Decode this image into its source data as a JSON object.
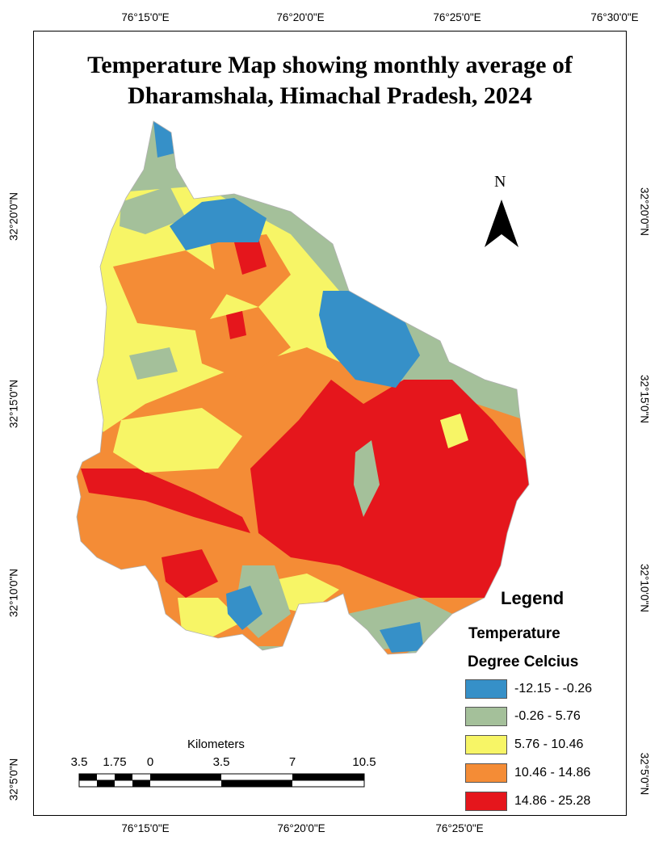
{
  "title": {
    "line1": "Temperature Map showing monthly average of",
    "line2": "Dharamshala, Himachal Pradesh, 2024"
  },
  "graticule": {
    "longitudes_top": [
      "76°15'0\"E",
      "76°20'0\"E",
      "76°25'0\"E",
      "76°30'0\"E"
    ],
    "longitudes_bottom": [
      "76°15'0\"E",
      "76°20'0\"E",
      "76°25'0\"E"
    ],
    "latitudes": [
      "32°20'0\"N",
      "32°15'0\"N",
      "32°10'0\"N",
      "32°5'0\"N"
    ]
  },
  "north_arrow": {
    "label": "N",
    "icon": "north-arrow-icon"
  },
  "legend": {
    "title": "Legend",
    "subtitle1": "Temperature",
    "subtitle2": "Degree Celcius",
    "classes": [
      {
        "label": "-12.15 - -0.26",
        "color": "#3690c8"
      },
      {
        "label": "-0.26 - 5.76",
        "color": "#a4c09a"
      },
      {
        "label": "5.76 - 10.46",
        "color": "#f7f566"
      },
      {
        "label": "10.46 - 14.86",
        "color": "#f48c36"
      },
      {
        "label": "14.86 - 25.28",
        "color": "#e5161c"
      }
    ]
  },
  "scale_bar": {
    "title": "Kilometers",
    "labels": [
      "3.5",
      "1.75",
      "0",
      "3.5",
      "7",
      "10.5"
    ]
  }
}
